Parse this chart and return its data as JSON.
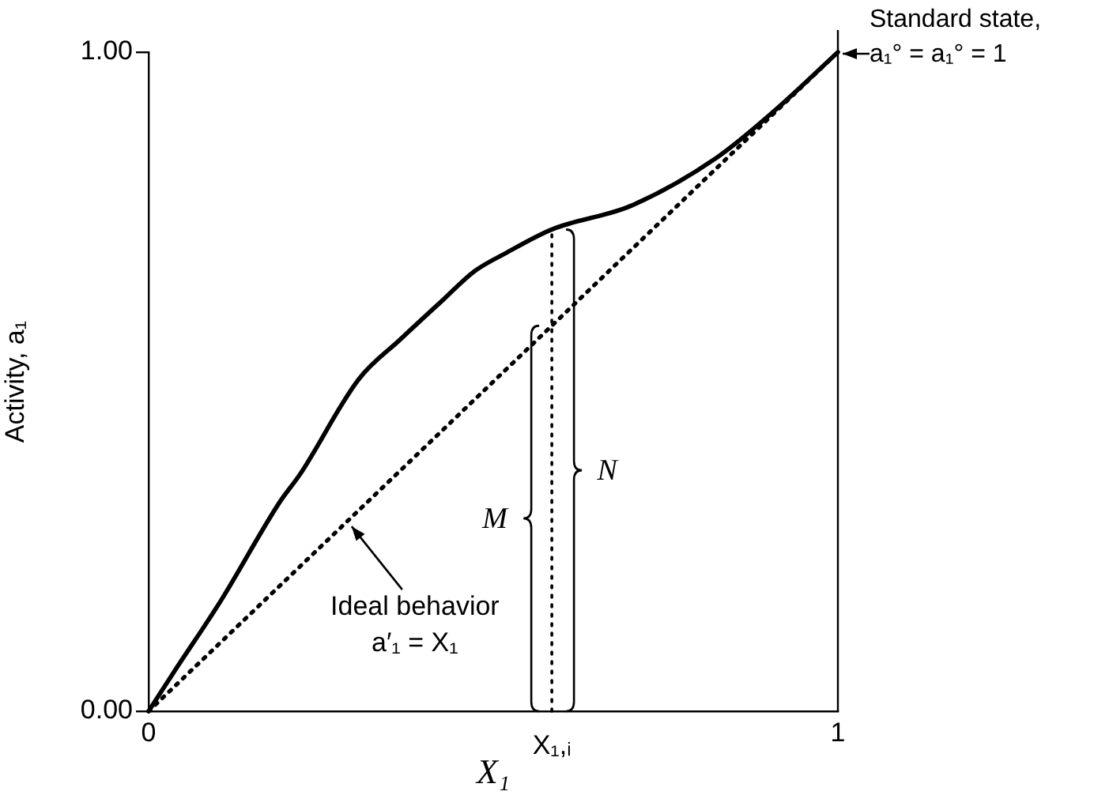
{
  "chart_data": {
    "type": "line",
    "xlabel": "X₁",
    "ylabel": "Activity, a₁",
    "xlim": [
      0,
      1
    ],
    "ylim": [
      0,
      1
    ],
    "xticks": [
      0,
      1
    ],
    "yticks": [
      {
        "value": 0,
        "label": "0.00"
      },
      {
        "value": 1,
        "label": "1.00"
      }
    ],
    "series": [
      {
        "color": "#000000",
        "line_style": "solid",
        "x": [
          0,
          0.037,
          0.105,
          0.19,
          0.22,
          0.305,
          0.365,
          0.427,
          0.472,
          0.518,
          0.585,
          0.7,
          0.823,
          0.908,
          1
        ],
        "values": [
          0,
          0.06,
          0.168,
          0.317,
          0.36,
          0.504,
          0.564,
          0.624,
          0.667,
          0.695,
          0.731,
          0.767,
          0.839,
          0.911,
          1
        ]
      },
      {
        "color": "#000000",
        "line_style": "dotted",
        "x": [
          0,
          1
        ],
        "values": [
          0,
          1
        ]
      },
      {
        "color": "#000000",
        "line_style": "dotted",
        "x": [
          0.585,
          0.585
        ],
        "values": [
          0,
          0.731
        ]
      }
    ],
    "annotations": [
      {
        "text": "Ideal behavior\na′₁ = X₁",
        "x": 0.29,
        "y": 0.29
      },
      {
        "text": "Standard state,\na₁° = a₁° = 1",
        "x": 1,
        "y": 1
      },
      "M",
      "N",
      {
        "text": "X₁,ᵢ",
        "x": 0.585,
        "y": 0
      }
    ],
    "grid": false,
    "legend": false,
    "marker": "none"
  }
}
